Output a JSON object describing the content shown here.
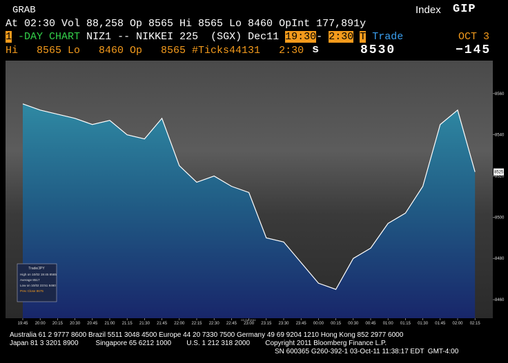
{
  "header": {
    "title": "GRAB",
    "index_label": "Index",
    "index_code": "GIP",
    "summary": "At 02:30 Vol 88,258 Op 8565 Hi 8565 Lo 8460 OpInt 177,891y",
    "days": "1",
    "chart_kind": "-DAY CHART",
    "security": "NIZ1 -- NIKKEI 225  (SGX) Dec11",
    "start_hour": "19",
    "start_min": ":30",
    "dash": "-",
    "end_hour": "2",
    "end_min": ":30",
    "mode_key": "T",
    "mode": "Trade",
    "date": "OCT 3",
    "stats": "Hi   8565 Lo   8460 Op   8565 #Ticks44131   2:30",
    "flag": "s",
    "last": "8530",
    "change": "−145"
  },
  "chart_data": {
    "type": "line",
    "x_caption": "03 Oct 2011",
    "categories": [
      "19:45",
      "20:00",
      "20:15",
      "20:30",
      "20:45",
      "21:00",
      "21:15",
      "21:30",
      "21:45",
      "22:00",
      "22:15",
      "22:30",
      "22:45",
      "23:00",
      "23:15",
      "23:30",
      "23:45",
      "00:00",
      "00:15",
      "00:30",
      "00:45",
      "01:00",
      "01:15",
      "01:30",
      "01:45",
      "02:00",
      "02:15"
    ],
    "series": [
      {
        "name": "Trade/JPY",
        "color": "#ffffff",
        "values": [
          8555,
          8552,
          8550,
          8548,
          8545,
          8547,
          8540,
          8538,
          8548,
          8525,
          8517,
          8520,
          8515,
          8512,
          8490,
          8488,
          8478,
          8468,
          8465,
          8480,
          8485,
          8497,
          8502,
          8515,
          8545,
          8552,
          8522
        ]
      }
    ],
    "ylim": [
      8451,
      8576
    ],
    "yticks": [
      8460,
      8480,
      8500,
      8520,
      8540,
      8560
    ],
    "last_label": "8525",
    "legend": [
      "High on 10/02 19:45  8565",
      "Average  8517",
      "Low on 10/02 23:51  8460",
      "Prev Close  8675"
    ]
  },
  "footer": [
    "Australia 61 2 9777 8600 Brazil 5511 3048 4500 Europe 44 20 7330 7500 Germany 49 69 9204 1210 Hong Kong 852 2977 6000",
    "Japan 81 3 3201 8900         Singapore 65 6212 1000        U.S. 1 212 318 2000        Copyright 2011 Bloomberg Finance L.P.",
    "SN 600365 G260-392-1 03-Oct-11 11:38:17 EDT  GMT-4:00"
  ]
}
